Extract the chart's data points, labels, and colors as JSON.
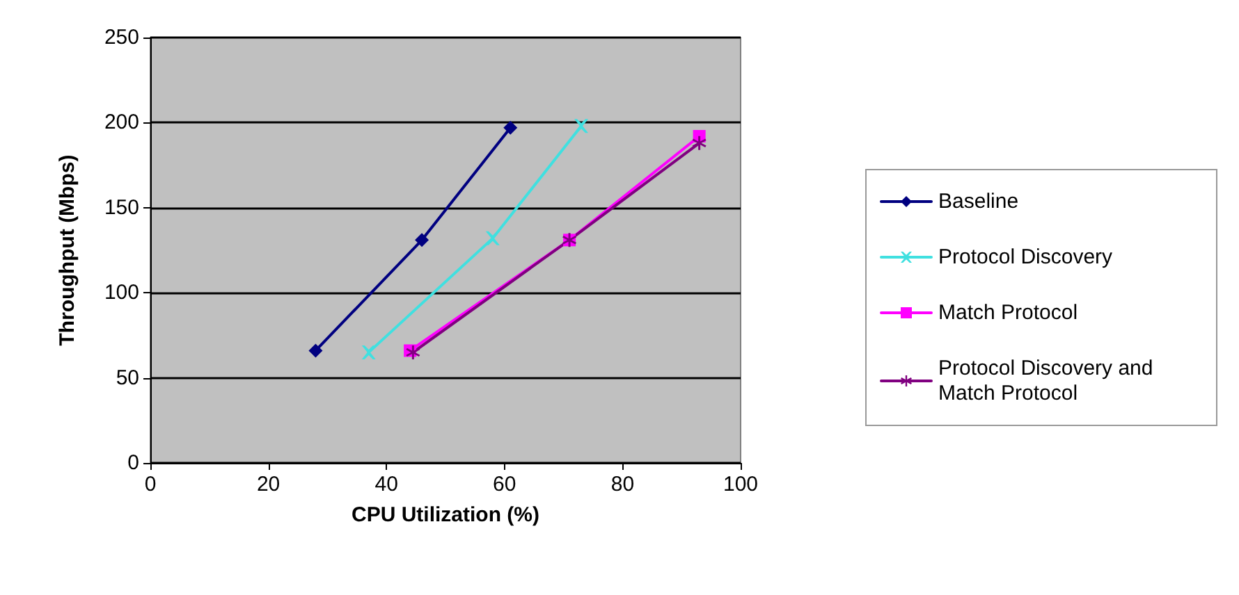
{
  "chart_data": {
    "type": "line",
    "xlabel": "CPU Utilization (%)",
    "ylabel": "Throughput (Mbps)",
    "xlim": [
      0,
      100
    ],
    "xticks": [
      0,
      20,
      40,
      60,
      80,
      100
    ],
    "ylim": [
      0,
      250
    ],
    "yticks": [
      0,
      50,
      100,
      150,
      200,
      250
    ],
    "grid": "y",
    "legend": "right",
    "line_style": "solid",
    "series": [
      {
        "name": "Baseline",
        "color": "#000080",
        "marker": "diamond",
        "x": [
          28,
          46,
          61
        ],
        "values": [
          66,
          131,
          197
        ]
      },
      {
        "name": "Protocol Discovery",
        "color": "#40e0e0",
        "marker": "cross",
        "x": [
          37,
          58,
          73
        ],
        "values": [
          65,
          132,
          198
        ]
      },
      {
        "name": "Match Protocol",
        "color": "#ff00ff",
        "marker": "square",
        "x": [
          44,
          71,
          93
        ],
        "values": [
          66,
          131,
          192
        ]
      },
      {
        "name": "Protocol Discovery and Match Protocol",
        "color": "#800080",
        "marker": "star",
        "x": [
          44.5,
          71,
          93
        ],
        "values": [
          65,
          131,
          188
        ]
      }
    ]
  }
}
